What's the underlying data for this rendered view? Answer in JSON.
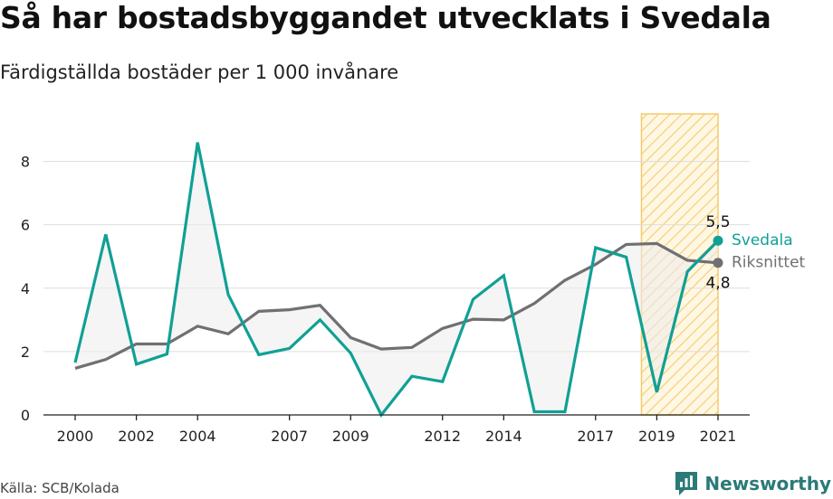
{
  "header": {
    "title": "Så har bostadsbyggandet utvecklats i Svedala",
    "subtitle": "Färdigställda bostäder per 1 000 invånare"
  },
  "footer": {
    "source": "Källa: SCB/Kolada",
    "brand": "Newsworthy"
  },
  "colors": {
    "svedala": "#11a095",
    "riket": "#706f73",
    "highlight_fill": "#fde9b0",
    "highlight_stroke": "#f5c96b",
    "area": "#ececec"
  },
  "chart_data": {
    "type": "line",
    "x": [
      2000,
      2001,
      2002,
      2003,
      2004,
      2005,
      2006,
      2007,
      2008,
      2009,
      2010,
      2011,
      2012,
      2013,
      2014,
      2015,
      2016,
      2017,
      2018,
      2019,
      2020,
      2021
    ],
    "x_tick_labels": [
      "2000",
      "2002",
      "2004",
      "2007",
      "2009",
      "2012",
      "2014",
      "2017",
      "2019",
      "2021"
    ],
    "y_ticks": [
      0,
      2,
      4,
      6,
      8
    ],
    "ylim": [
      0,
      9.5
    ],
    "grid": true,
    "highlight_range": [
      2018.5,
      2021
    ],
    "series": [
      {
        "name": "Svedala",
        "end_label": "5,5",
        "values": [
          1.65,
          5.7,
          1.6,
          1.92,
          8.6,
          3.8,
          1.9,
          2.1,
          3.0,
          1.95,
          0.0,
          1.22,
          1.05,
          3.65,
          4.4,
          0.1,
          0.1,
          5.28,
          4.98,
          0.72,
          4.52,
          5.5
        ]
      },
      {
        "name": "Riksnittet",
        "end_label": "4,8",
        "values": [
          1.47,
          1.75,
          2.24,
          2.24,
          2.8,
          2.56,
          3.27,
          3.32,
          3.46,
          2.44,
          2.08,
          2.13,
          2.73,
          3.02,
          3.0,
          3.52,
          4.25,
          4.75,
          5.38,
          5.41,
          4.88,
          4.8
        ]
      }
    ]
  }
}
